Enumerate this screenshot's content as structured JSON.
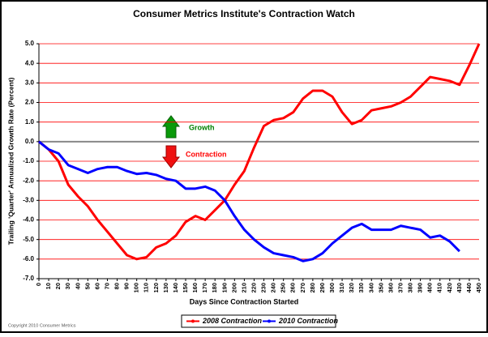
{
  "chart_data": {
    "type": "line",
    "title": "Consumer Metrics Institute's Contraction Watch",
    "xlabel": "Days Since Contraction Started",
    "ylabel": "Trailing 'Quarter' Annualized Growth Rate (Percent)",
    "x": [
      0,
      10,
      20,
      30,
      40,
      50,
      60,
      70,
      80,
      90,
      100,
      110,
      120,
      130,
      140,
      150,
      160,
      170,
      180,
      190,
      200,
      210,
      220,
      230,
      240,
      250,
      260,
      270,
      280,
      290,
      300,
      310,
      320,
      330,
      340,
      350,
      360,
      370,
      380,
      390,
      400,
      410,
      420,
      430,
      440,
      450
    ],
    "series": [
      {
        "name": "2008 Contraction",
        "color": "#ff0000",
        "values": [
          0,
          -0.4,
          -1.0,
          -2.2,
          -2.8,
          -3.3,
          -4.0,
          -4.6,
          -5.2,
          -5.8,
          -6.0,
          -5.9,
          -5.4,
          -5.2,
          -4.8,
          -4.1,
          -3.8,
          -4.0,
          -3.5,
          -3.0,
          -2.2,
          -1.5,
          -0.3,
          0.8,
          1.1,
          1.2,
          1.5,
          2.2,
          2.6,
          2.6,
          2.3,
          1.5,
          0.9,
          1.1,
          1.6,
          1.7,
          1.8,
          2.0,
          2.3,
          2.8,
          3.3,
          3.2,
          3.1,
          2.9,
          3.9,
          5.0
        ]
      },
      {
        "name": "2010 Contraction",
        "color": "#0000ff",
        "values": [
          0,
          -0.4,
          -0.6,
          -1.2,
          -1.4,
          -1.6,
          -1.4,
          -1.3,
          -1.3,
          -1.5,
          -1.65,
          -1.6,
          -1.7,
          -1.9,
          -2.0,
          -2.4,
          -2.4,
          -2.3,
          -2.5,
          -3.0,
          -3.8,
          -4.5,
          -5.0,
          -5.4,
          -5.7,
          -5.8,
          -5.9,
          -6.1,
          -6.0,
          -5.7,
          -5.2,
          -4.8,
          -4.4,
          -4.2,
          -4.5,
          -4.5,
          -4.5,
          -4.3,
          -4.4,
          -4.5,
          -4.9,
          -4.8,
          -5.1,
          -5.6,
          null,
          null
        ]
      }
    ],
    "xlim": [
      0,
      450
    ],
    "xticks": [
      0,
      10,
      20,
      30,
      40,
      50,
      60,
      70,
      80,
      90,
      100,
      110,
      120,
      130,
      140,
      150,
      160,
      170,
      180,
      190,
      200,
      210,
      220,
      230,
      240,
      250,
      260,
      270,
      280,
      290,
      300,
      310,
      320,
      330,
      340,
      350,
      360,
      370,
      380,
      390,
      400,
      410,
      420,
      430,
      440,
      450
    ],
    "ylim": [
      -7,
      5
    ],
    "yticks": [
      {
        "value": -7,
        "label": "-7.0"
      },
      {
        "value": -6,
        "label": "-6.0"
      },
      {
        "value": -5,
        "label": "-5.0"
      },
      {
        "value": -4,
        "label": "-4.0"
      },
      {
        "value": -3,
        "label": "-3.0"
      },
      {
        "value": -2,
        "label": "-2.0"
      },
      {
        "value": -1,
        "label": "-1.0"
      },
      {
        "value": 0,
        "label": "0.0"
      },
      {
        "value": 1,
        "label": "1.0"
      },
      {
        "value": 2,
        "label": "2.0"
      },
      {
        "value": 3,
        "label": "3.0"
      },
      {
        "value": 4,
        "label": "4.0"
      },
      {
        "value": 5,
        "label": "5.0"
      }
    ],
    "grid": true,
    "grid_color": "#ff0000",
    "legend": "bottom",
    "annotations": [
      "Growth",
      "Contraction",
      "Copyright 2010 Consumer Metrics"
    ]
  }
}
